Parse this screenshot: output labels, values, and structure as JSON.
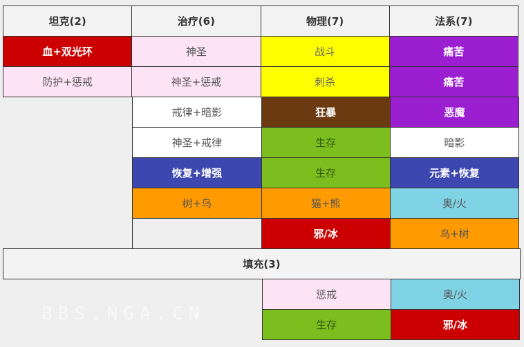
{
  "headers": [
    "坦克(2)",
    "治疗(6)",
    "物理(7)",
    "法系(7)"
  ],
  "rows": [
    [
      {
        "text": "血+双光环",
        "bg": "#cc0000",
        "fg": "#ffffff",
        "bold": true
      },
      {
        "text": "神圣",
        "bg": "#fde3f6",
        "fg": "#555555"
      },
      {
        "text": "战斗",
        "bg": "#ffff00",
        "fg": "#666666"
      },
      {
        "text": "痛苦",
        "bg": "#9b1fd0",
        "fg": "#ffffff",
        "bold": true
      }
    ],
    [
      {
        "text": "防护+惩戒",
        "bg": "#fde3f6",
        "fg": "#555555"
      },
      {
        "text": "神圣+惩戒",
        "bg": "#fde3f6",
        "fg": "#555555"
      },
      {
        "text": "刺杀",
        "bg": "#ffff00",
        "fg": "#666666"
      },
      {
        "text": "痛苦",
        "bg": "#9b1fd0",
        "fg": "#ffffff",
        "bold": true
      }
    ],
    [
      null,
      {
        "text": "戒律+暗影",
        "bg": "#ffffff",
        "fg": "#555555"
      },
      {
        "text": "狂暴",
        "bg": "#6b3a10",
        "fg": "#ffffff",
        "bold": true
      },
      {
        "text": "恶魔",
        "bg": "#9b1fd0",
        "fg": "#ffffff",
        "bold": true
      }
    ],
    [
      null,
      {
        "text": "神圣+戒律",
        "bg": "#ffffff",
        "fg": "#555555"
      },
      {
        "text": "生存",
        "bg": "#7dbe1f",
        "fg": "#2f5a10"
      },
      {
        "text": "暗影",
        "bg": "#ffffff",
        "fg": "#555555"
      }
    ],
    [
      null,
      {
        "text": "恢复+增强",
        "bg": "#3c48b0",
        "fg": "#ffffff",
        "bold": true
      },
      {
        "text": "生存",
        "bg": "#7dbe1f",
        "fg": "#2f5a10"
      },
      {
        "text": "元素+恢复",
        "bg": "#3c48b0",
        "fg": "#ffffff",
        "bold": true
      }
    ],
    [
      null,
      {
        "text": "树+鸟",
        "bg": "#ff9a00",
        "fg": "#555555"
      },
      {
        "text": "猫+熊",
        "bg": "#ff9a00",
        "fg": "#555555"
      },
      {
        "text": "奥/火",
        "bg": "#80d3e5",
        "fg": "#555555"
      }
    ],
    [
      null,
      {
        "text": "",
        "bg": "transparent",
        "fg": "#555555"
      },
      {
        "text": "邪/冰",
        "bg": "#cc0000",
        "fg": "#ffffff",
        "bold": true
      },
      {
        "text": "鸟+树",
        "bg": "#ff9a00",
        "fg": "#555555"
      }
    ]
  ],
  "filler_header": "填充(3)",
  "filler_rows": [
    [
      null,
      null,
      {
        "text": "惩戒",
        "bg": "#fde3f6",
        "fg": "#555555"
      },
      {
        "text": "奥/火",
        "bg": "#80d3e5",
        "fg": "#555555"
      }
    ],
    [
      null,
      null,
      {
        "text": "生存",
        "bg": "#7dbe1f",
        "fg": "#2f5a10"
      },
      {
        "text": "邪/冰",
        "bg": "#cc0000",
        "fg": "#ffffff",
        "bold": true
      }
    ]
  ],
  "watermark": "BBS.NGA.CN"
}
